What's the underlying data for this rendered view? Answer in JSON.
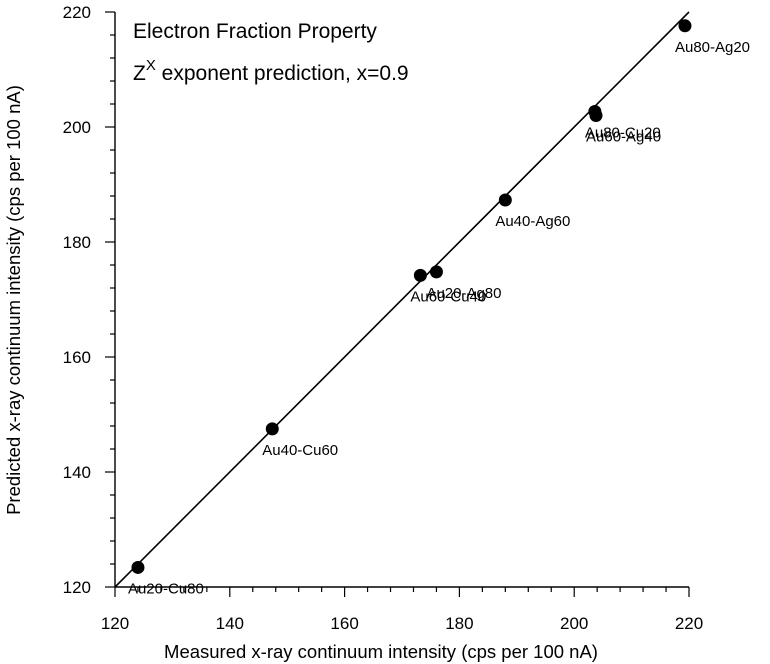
{
  "chart_data": {
    "type": "scatter",
    "title": "Electron Fraction Property",
    "subtitle": {
      "base": "Z",
      "superscript": "X",
      "text": " exponent prediction, x=0.9"
    },
    "xlabel": "Measured x-ray continuum intensity (cps per 100 nA)",
    "ylabel": "Predicted x-ray continuum intensity (cps per 100 nA)",
    "xlim": [
      120,
      220
    ],
    "ylim": [
      120,
      220
    ],
    "x_ticks": [
      120,
      140,
      160,
      180,
      200,
      220
    ],
    "y_ticks": [
      120,
      140,
      160,
      180,
      200,
      220
    ],
    "x_tick_labels": [
      "120",
      "140",
      "160",
      "180",
      "200",
      "220"
    ],
    "y_tick_labels": [
      "120",
      "140",
      "160",
      "180",
      "200",
      "220"
    ],
    "grid": false,
    "reference_line": {
      "type": "y=x",
      "from": [
        120,
        120
      ],
      "to": [
        220,
        220
      ]
    },
    "marker_color": "#000000",
    "points": [
      {
        "x": 124.0,
        "y": 123.4,
        "label": "Au20-Cu80"
      },
      {
        "x": 147.4,
        "y": 147.5,
        "label": "Au40-Cu60"
      },
      {
        "x": 173.2,
        "y": 174.2,
        "label": "Au60-Cu40"
      },
      {
        "x": 176.0,
        "y": 174.8,
        "label": "Au20-Ag80"
      },
      {
        "x": 188.0,
        "y": 187.3,
        "label": "Au40-Ag60"
      },
      {
        "x": 203.6,
        "y": 202.7,
        "label": "Au80-Cu20"
      },
      {
        "x": 203.8,
        "y": 202.0,
        "label": "Au60-Ag40"
      },
      {
        "x": 219.3,
        "y": 217.6,
        "label": "Au80-Ag20"
      }
    ]
  }
}
